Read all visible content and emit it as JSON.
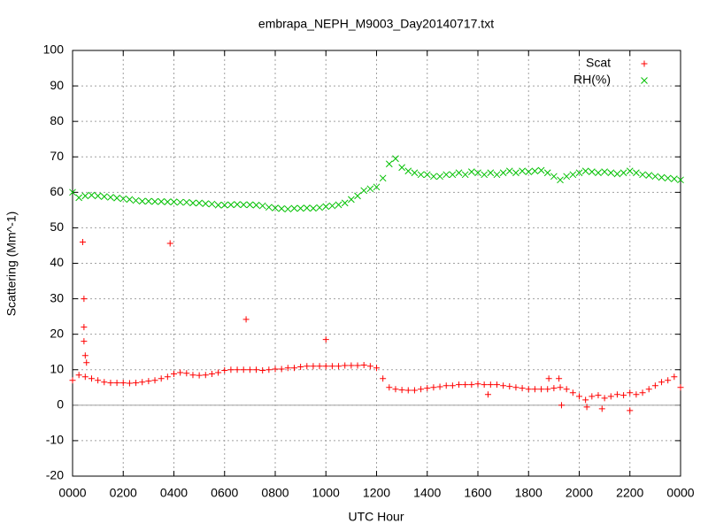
{
  "chart_data": {
    "type": "scatter",
    "title": "embrapa_NEPH_M9003_Day20140717.txt",
    "xlabel": "UTC Hour",
    "ylabel": "Scattering (Mm^-1)",
    "xlim": [
      0,
      24
    ],
    "ylim": [
      -20,
      100
    ],
    "xticks": [
      {
        "value": 0,
        "label": "0000"
      },
      {
        "value": 2,
        "label": "0200"
      },
      {
        "value": 4,
        "label": "0400"
      },
      {
        "value": 6,
        "label": "0600"
      },
      {
        "value": 8,
        "label": "0800"
      },
      {
        "value": 10,
        "label": "1000"
      },
      {
        "value": 12,
        "label": "1200"
      },
      {
        "value": 14,
        "label": "1400"
      },
      {
        "value": 16,
        "label": "1600"
      },
      {
        "value": 18,
        "label": "1800"
      },
      {
        "value": 20,
        "label": "2000"
      },
      {
        "value": 22,
        "label": "2200"
      },
      {
        "value": 24,
        "label": "0000"
      }
    ],
    "yticks": [
      -20,
      -10,
      0,
      10,
      20,
      30,
      40,
      50,
      60,
      70,
      80,
      90,
      100
    ],
    "grid": true,
    "zeroaxis": true,
    "legend": "top-right",
    "series": [
      {
        "name": "Scat",
        "color": "#ff0000",
        "marker": "plus",
        "x": [
          0,
          0.25,
          0.5,
          0.75,
          1,
          1.25,
          1.5,
          1.75,
          2,
          2.25,
          2.5,
          2.75,
          3,
          3.25,
          3.5,
          3.75,
          4,
          4.25,
          4.5,
          4.75,
          5,
          5.25,
          5.5,
          5.75,
          6,
          6.25,
          6.5,
          6.75,
          7,
          7.25,
          7.5,
          7.75,
          8,
          8.25,
          8.5,
          8.75,
          9,
          9.25,
          9.5,
          9.75,
          10,
          10.25,
          10.5,
          10.75,
          11,
          11.25,
          11.5,
          11.75,
          12,
          12.25,
          12.5,
          12.75,
          13,
          13.25,
          13.5,
          13.75,
          14,
          14.25,
          14.5,
          14.75,
          15,
          15.25,
          15.5,
          15.75,
          16,
          16.25,
          16.5,
          16.75,
          17,
          17.25,
          17.5,
          17.75,
          18,
          18.25,
          18.5,
          18.75,
          19,
          19.25,
          19.5,
          19.75,
          20,
          20.25,
          20.5,
          20.75,
          21,
          21.25,
          21.5,
          21.75,
          22,
          22.25,
          22.5,
          22.75,
          23,
          23.25,
          23.5,
          23.75,
          24,
          0.4,
          0.45,
          0.45,
          0.45,
          0.5,
          0.55,
          3.85,
          6.85,
          10,
          19.2,
          18.8,
          16.4,
          19.3,
          20.9,
          22,
          20.3
        ],
        "values": [
          7,
          8.5,
          8,
          7.5,
          7,
          6.5,
          6.3,
          6.3,
          6.3,
          6.2,
          6.3,
          6.5,
          6.8,
          7,
          7.5,
          8,
          8.8,
          9.2,
          9,
          8.5,
          8.4,
          8.5,
          8.8,
          9.2,
          9.8,
          10,
          10,
          10,
          10,
          10,
          9.8,
          10,
          10.2,
          10.2,
          10.5,
          10.5,
          10.8,
          11,
          11,
          11,
          11,
          11,
          11,
          11.2,
          11.2,
          11.2,
          11.3,
          11,
          10.5,
          7.5,
          5,
          4.5,
          4.3,
          4.2,
          4.2,
          4.5,
          4.8,
          5,
          5.2,
          5.5,
          5.5,
          5.8,
          5.8,
          5.8,
          6,
          5.8,
          5.8,
          5.8,
          5.5,
          5.3,
          5,
          4.8,
          4.5,
          4.5,
          4.5,
          4.5,
          4.8,
          5,
          4.5,
          3.5,
          2.5,
          1.5,
          2.5,
          2.8,
          2,
          2.5,
          3,
          2.8,
          3.5,
          3,
          3.5,
          4.5,
          5.5,
          6.5,
          7,
          8,
          5,
          46,
          30,
          22,
          18,
          14,
          12,
          45.6,
          24.2,
          18.5,
          7.5,
          7.5,
          3,
          0,
          -1,
          -1.5,
          -0.5
        ]
      },
      {
        "name": "RH(%)",
        "color": "#00c000",
        "marker": "cross",
        "x": [
          0,
          0.25,
          0.5,
          0.75,
          1,
          1.25,
          1.5,
          1.75,
          2,
          2.25,
          2.5,
          2.75,
          3,
          3.25,
          3.5,
          3.75,
          4,
          4.25,
          4.5,
          4.75,
          5,
          5.25,
          5.5,
          5.75,
          6,
          6.25,
          6.5,
          6.75,
          7,
          7.25,
          7.5,
          7.75,
          8,
          8.25,
          8.5,
          8.75,
          9,
          9.25,
          9.5,
          9.75,
          10,
          10.25,
          10.5,
          10.75,
          11,
          11.25,
          11.5,
          11.75,
          12,
          12.25,
          12.5,
          12.75,
          13,
          13.25,
          13.5,
          13.75,
          14,
          14.25,
          14.5,
          14.75,
          15,
          15.25,
          15.5,
          15.75,
          16,
          16.25,
          16.5,
          16.75,
          17,
          17.25,
          17.5,
          17.75,
          18,
          18.25,
          18.5,
          18.75,
          19,
          19.25,
          19.5,
          19.75,
          20,
          20.25,
          20.5,
          20.75,
          21,
          21.25,
          21.5,
          21.75,
          22,
          22.25,
          22.5,
          22.75,
          23,
          23.25,
          23.5,
          23.75,
          24
        ],
        "values": [
          60,
          58.5,
          59,
          59.2,
          59,
          58.8,
          58.6,
          58.4,
          58.2,
          58,
          57.7,
          57.5,
          57.5,
          57.4,
          57.4,
          57.3,
          57.3,
          57.2,
          57.2,
          57,
          57,
          56.8,
          56.7,
          56.4,
          56.4,
          56.5,
          56.6,
          56.5,
          56.5,
          56.4,
          56.2,
          55.8,
          55.6,
          55.4,
          55.3,
          55.5,
          55.5,
          55.6,
          55.5,
          55.7,
          56,
          56.2,
          56.5,
          57,
          58,
          59,
          60.5,
          61,
          61.5,
          64,
          68,
          69.5,
          67,
          66,
          65.5,
          65,
          65,
          64.5,
          64.5,
          65,
          65,
          65.5,
          65,
          65.8,
          65.5,
          65,
          65.5,
          65,
          65.5,
          66,
          65.5,
          66,
          65.8,
          66,
          66.2,
          65.5,
          64.5,
          63.5,
          64.5,
          65,
          65.5,
          66,
          65.8,
          65.5,
          65.8,
          65.5,
          65.2,
          65.5,
          66,
          65.5,
          65,
          64.8,
          64.5,
          64.2,
          64,
          63.8,
          63.5
        ]
      }
    ]
  }
}
